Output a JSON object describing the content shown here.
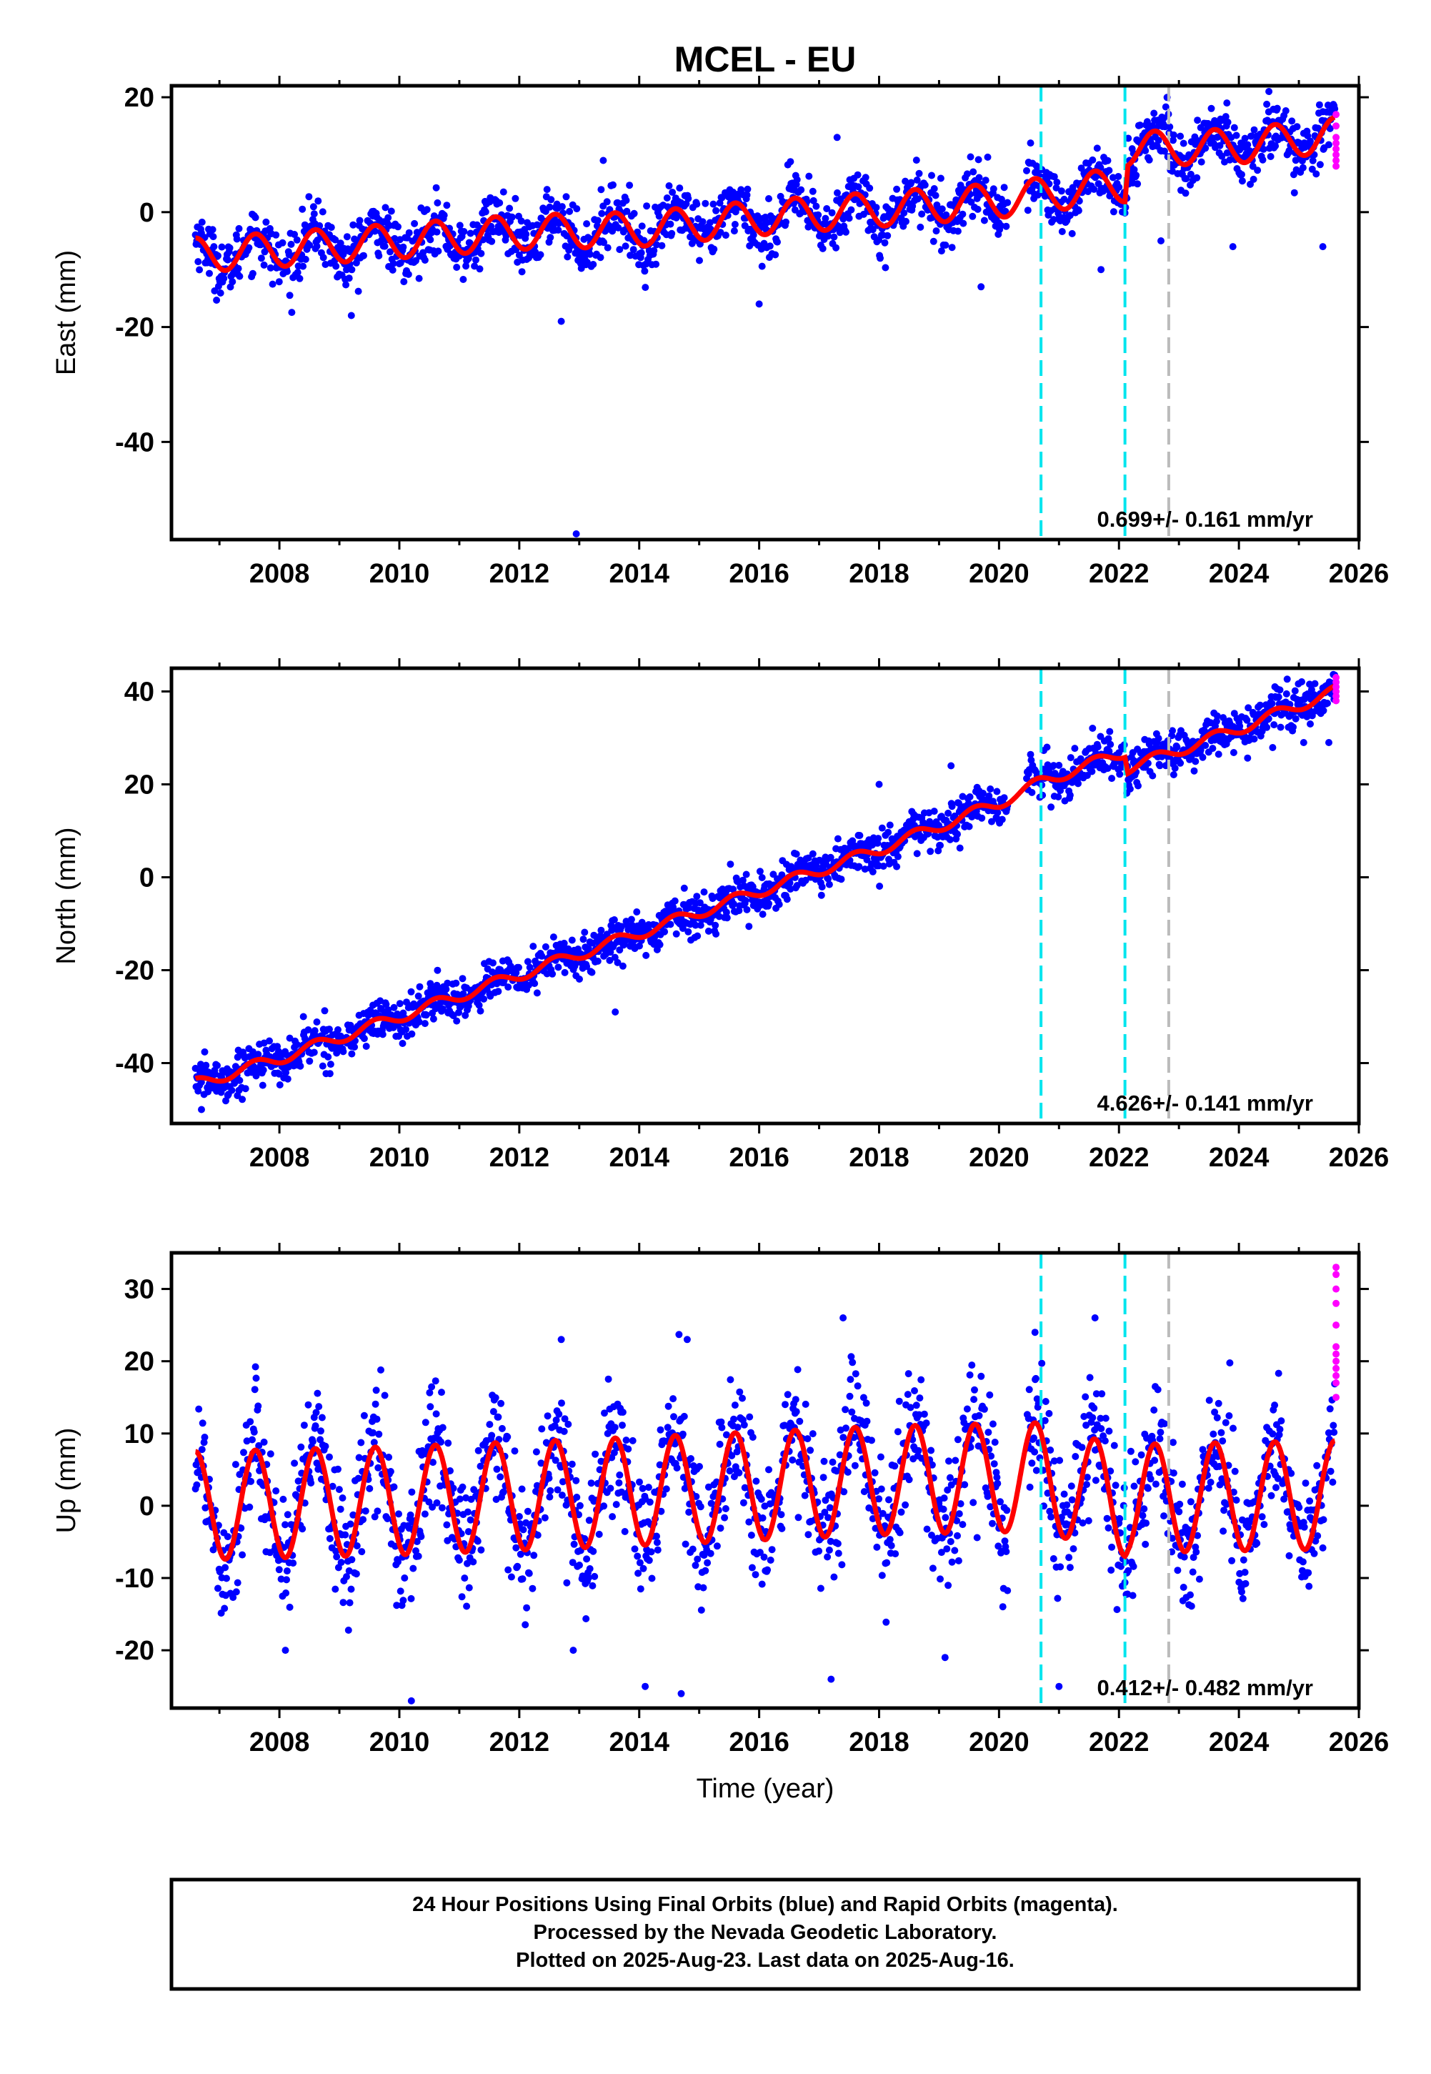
{
  "title": "MCEL - EU",
  "xlabel": "Time (year)",
  "footer": {
    "line1": "24 Hour Positions Using Final Orbits (blue) and Rapid Orbits (magenta).",
    "line2": "Processed by the Nevada Geodetic Laboratory.",
    "line3": "Plotted on 2025-Aug-23. Last data on 2025-Aug-16."
  },
  "chart_data": [
    {
      "type": "scatter",
      "id": "east",
      "ylabel": "East (mm)",
      "xlim": [
        2006.2,
        2026.0
      ],
      "ylim": [
        -57,
        22
      ],
      "xticks": [
        2008,
        2010,
        2012,
        2014,
        2016,
        2018,
        2020,
        2022,
        2024,
        2026
      ],
      "yticks": [
        20,
        0,
        -20,
        -40
      ],
      "rate_text": "0.699+/- 0.161 mm/yr",
      "event_lines": [
        {
          "x": 2020.7,
          "color": "#00e5ee"
        },
        {
          "x": 2022.1,
          "color": "#00e5ee"
        },
        {
          "x": 2022.83,
          "color": "#bbbbbb"
        }
      ],
      "series": [
        {
          "role": "final",
          "color": "#0000ff"
        },
        {
          "role": "rapid",
          "color": "#ff00ff"
        },
        {
          "role": "model",
          "color": "#ff0000"
        }
      ],
      "model_knots": {
        "x": [
          2006.6,
          2008,
          2010,
          2012,
          2014,
          2016,
          2018,
          2020,
          2020.7,
          2022.1,
          2022.15,
          2024,
          2025.6
        ],
        "y": [
          -7.5,
          -6.5,
          -5,
          -3.5,
          -3,
          -1,
          0.5,
          2,
          3,
          4.8,
          11,
          11.5,
          13.5
        ]
      },
      "seasonal_amplitude": 3,
      "noise_sd": 2.5,
      "outliers": [
        [
          2012.95,
          -56
        ],
        [
          2012.7,
          -19
        ],
        [
          2017.3,
          13
        ],
        [
          2013.4,
          9
        ],
        [
          2021.7,
          -10
        ],
        [
          2022.7,
          -5
        ],
        [
          2023.9,
          -6
        ],
        [
          2023.8,
          19
        ],
        [
          2024.5,
          21
        ],
        [
          2025.4,
          -6
        ],
        [
          2019.7,
          -13
        ],
        [
          2016.0,
          -16
        ],
        [
          2009.2,
          -18
        ]
      ],
      "rapid_points": {
        "x": 2025.62,
        "y": [
          17,
          15,
          13,
          12,
          11,
          10,
          9,
          8
        ]
      }
    },
    {
      "type": "scatter",
      "id": "north",
      "ylabel": "North (mm)",
      "xlim": [
        2006.2,
        2026.0
      ],
      "ylim": [
        -53,
        45
      ],
      "xticks": [
        2008,
        2010,
        2012,
        2014,
        2016,
        2018,
        2020,
        2022,
        2024,
        2026
      ],
      "yticks": [
        40,
        20,
        0,
        -20,
        -40
      ],
      "rate_text": "4.626+/- 0.141 mm/yr",
      "event_lines": [
        {
          "x": 2020.7,
          "color": "#00e5ee"
        },
        {
          "x": 2022.1,
          "color": "#00e5ee"
        },
        {
          "x": 2022.83,
          "color": "#bbbbbb"
        }
      ],
      "series": [
        {
          "role": "final",
          "color": "#0000ff"
        },
        {
          "role": "rapid",
          "color": "#ff00ff"
        },
        {
          "role": "model",
          "color": "#ff0000"
        }
      ],
      "model_knots": {
        "x": [
          2006.6,
          2008,
          2010,
          2012,
          2014,
          2016,
          2018,
          2020,
          2020.7,
          2022.1,
          2022.15,
          2024,
          2025.6
        ],
        "y": [
          -44.5,
          -39,
          -30,
          -21,
          -12,
          -3,
          6,
          16,
          20.5,
          27,
          23.5,
          32,
          40
        ]
      },
      "seasonal_amplitude": 1.2,
      "noise_sd": 2.2,
      "outliers": [
        [
          2006.7,
          -50
        ],
        [
          2007.3,
          -47
        ],
        [
          2013.6,
          -29
        ],
        [
          2018.0,
          20
        ],
        [
          2019.2,
          24
        ],
        [
          2020.8,
          28
        ],
        [
          2025.5,
          29
        ],
        [
          2008.4,
          -30
        ],
        [
          2011.3,
          -27
        ],
        [
          2024.6,
          41
        ]
      ],
      "rapid_points": {
        "x": 2025.62,
        "y": [
          43,
          42,
          41,
          40,
          39,
          38
        ]
      }
    },
    {
      "type": "scatter",
      "id": "up",
      "ylabel": "Up (mm)",
      "xlim": [
        2006.2,
        2026.0
      ],
      "ylim": [
        -28,
        35
      ],
      "xticks": [
        2008,
        2010,
        2012,
        2014,
        2016,
        2018,
        2020,
        2022,
        2024,
        2026
      ],
      "yticks": [
        30,
        20,
        10,
        0,
        -10,
        -20
      ],
      "rate_text": "0.412+/- 0.482 mm/yr",
      "event_lines": [
        {
          "x": 2020.7,
          "color": "#00e5ee"
        },
        {
          "x": 2022.1,
          "color": "#00e5ee"
        },
        {
          "x": 2022.83,
          "color": "#bbbbbb"
        }
      ],
      "series": [
        {
          "role": "final",
          "color": "#0000ff"
        },
        {
          "role": "rapid",
          "color": "#ff00ff"
        },
        {
          "role": "model",
          "color": "#ff0000"
        }
      ],
      "model_knots": {
        "x": [
          2006.6,
          2010,
          2014,
          2018,
          2020.7,
          2022.1,
          2022.15,
          2025.6
        ],
        "y": [
          0,
          0.7,
          2,
          3.5,
          4,
          0.5,
          1,
          1.5
        ]
      },
      "seasonal_amplitude": 7.5,
      "noise_sd": 4.5,
      "outliers": [
        [
          2010.2,
          -27
        ],
        [
          2014.1,
          -25
        ],
        [
          2014.7,
          -26
        ],
        [
          2017.4,
          26
        ],
        [
          2021.6,
          26
        ],
        [
          2020.6,
          24
        ],
        [
          2012.7,
          23
        ],
        [
          2014.8,
          23
        ],
        [
          2008.1,
          -20
        ],
        [
          2012.9,
          -20
        ],
        [
          2017.2,
          -24
        ],
        [
          2021.0,
          -25
        ],
        [
          2019.1,
          -21
        ]
      ],
      "rapid_points": {
        "x": 2025.62,
        "y": [
          33,
          32,
          30,
          28,
          25,
          22,
          21,
          20,
          19,
          18,
          17,
          15
        ]
      }
    }
  ]
}
